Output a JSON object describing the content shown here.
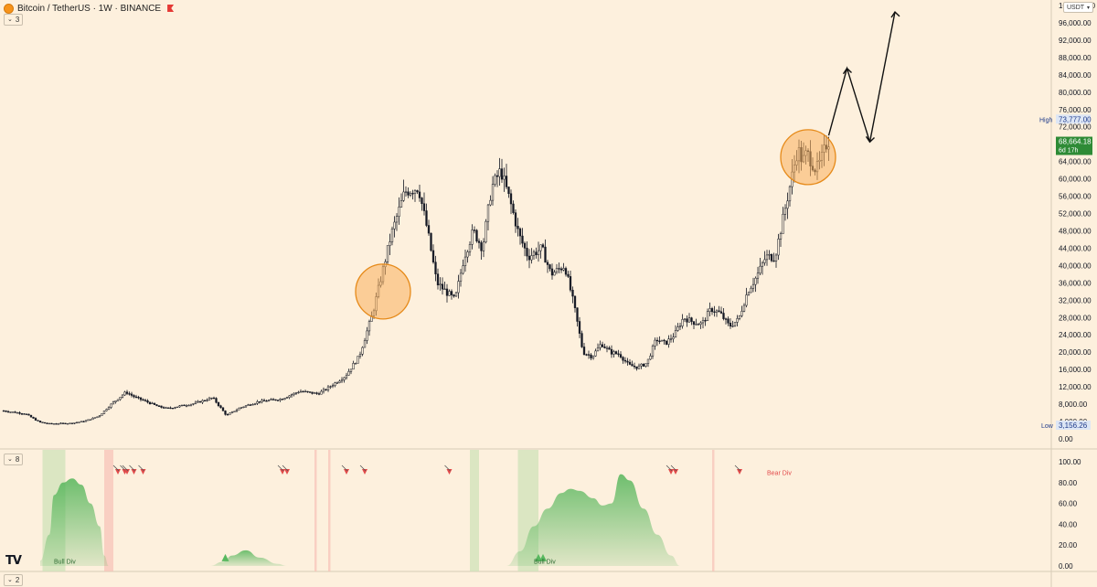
{
  "header": {
    "title": "Bitcoin / TetherUS · 1W · BINANCE",
    "main_pane_toggle": "3",
    "indicator_pane_toggle": "8",
    "bottom_pane_toggle": "2",
    "currency": "USDT"
  },
  "colors": {
    "background": "#fdf0dd",
    "candle_up": "#131722",
    "candle_down": "#131722",
    "highlight_circle_fill": "#f9b15c",
    "highlight_circle_stroke": "#e68a19",
    "high_label": "#1e3a8a",
    "price_badge": "#2e8b36",
    "bull_zone": "#cfe3b8",
    "bear_zone": "#f7c1b7",
    "oscillator": "#3fae49",
    "bear_marker": "#e24a4a"
  },
  "chart_data": [
    {
      "type": "candlestick",
      "title": "Bitcoin / TetherUS · 1W · BINANCE",
      "yscale": "linear",
      "ylim": [
        0,
        100000
      ],
      "y_ticks": [
        "100,000.00",
        "96,000.00",
        "92,000.00",
        "88,000.00",
        "84,000.00",
        "80,000.00",
        "76,000.00",
        "72,000.00",
        "68,000.00",
        "64,000.00",
        "60,000.00",
        "56,000.00",
        "52,000.00",
        "48,000.00",
        "44,000.00",
        "40,000.00",
        "36,000.00",
        "32,000.00",
        "28,000.00",
        "24,000.00",
        "20,000.00",
        "16,000.00",
        "12,000.00",
        "8,000.00",
        "4,000.00",
        "0.00"
      ],
      "high": {
        "label": "High",
        "value": "73,777.00"
      },
      "low": {
        "label": "Low",
        "value": "3,156.26"
      },
      "last_price": {
        "value": "68,664.18",
        "countdown": "6d 17h"
      },
      "anchors": [
        [
          0,
          6500
        ],
        [
          10,
          5800
        ],
        [
          16,
          3900
        ],
        [
          20,
          3500
        ],
        [
          30,
          3600
        ],
        [
          36,
          4100
        ],
        [
          42,
          5200
        ],
        [
          48,
          8200
        ],
        [
          54,
          10800
        ],
        [
          58,
          9600
        ],
        [
          62,
          8800
        ],
        [
          68,
          7500
        ],
        [
          72,
          7000
        ],
        [
          78,
          7600
        ],
        [
          84,
          8200
        ],
        [
          92,
          9500
        ],
        [
          98,
          5400
        ],
        [
          104,
          7200
        ],
        [
          112,
          8600
        ],
        [
          122,
          9200
        ],
        [
          130,
          11000
        ],
        [
          138,
          10400
        ],
        [
          142,
          11600
        ],
        [
          150,
          14500
        ],
        [
          156,
          19000
        ],
        [
          162,
          29000
        ],
        [
          166,
          38000
        ],
        [
          170,
          47000
        ],
        [
          176,
          57000
        ],
        [
          182,
          58000
        ],
        [
          186,
          48000
        ],
        [
          190,
          36000
        ],
        [
          194,
          34000
        ],
        [
          198,
          32000
        ],
        [
          202,
          42000
        ],
        [
          206,
          48000
        ],
        [
          210,
          44000
        ],
        [
          214,
          58000
        ],
        [
          218,
          62000
        ],
        [
          222,
          55000
        ],
        [
          226,
          47000
        ],
        [
          230,
          42000
        ],
        [
          236,
          44000
        ],
        [
          240,
          38000
        ],
        [
          246,
          40000
        ],
        [
          250,
          31000
        ],
        [
          254,
          20000
        ],
        [
          258,
          19000
        ],
        [
          262,
          22000
        ],
        [
          266,
          20000
        ],
        [
          270,
          19500
        ],
        [
          274,
          17000
        ],
        [
          278,
          16500
        ],
        [
          282,
          17500
        ],
        [
          286,
          23000
        ],
        [
          290,
          22000
        ],
        [
          294,
          24000
        ],
        [
          298,
          28000
        ],
        [
          302,
          27000
        ],
        [
          306,
          26500
        ],
        [
          310,
          30000
        ],
        [
          314,
          29000
        ],
        [
          318,
          26000
        ],
        [
          322,
          27500
        ],
        [
          326,
          34000
        ],
        [
          330,
          37500
        ],
        [
          334,
          42000
        ],
        [
          338,
          42000
        ],
        [
          342,
          52000
        ],
        [
          346,
          62000
        ],
        [
          348,
          67000
        ],
        [
          350,
          64000
        ],
        [
          352,
          66000
        ],
        [
          356,
          62000
        ],
        [
          358,
          64000
        ],
        [
          361,
          68700
        ]
      ],
      "total_bars": 362,
      "highlight_circles": [
        {
          "center_bar": 166,
          "center_value": 34000,
          "label": ""
        },
        {
          "center_bar": 352,
          "center_value": 65000,
          "label": ""
        }
      ],
      "projection_arrow": [
        [
          361,
          70000
        ],
        [
          369,
          85500
        ],
        [
          379,
          68500
        ],
        [
          390,
          98500
        ]
      ]
    },
    {
      "type": "area",
      "title": "",
      "ylim": [
        0,
        100
      ],
      "y_ticks": [
        "100.00",
        "80.00",
        "60.00",
        "40.00",
        "20.00",
        "0.00"
      ],
      "series": [
        {
          "points": [
            [
              16,
              5
            ],
            [
              20,
              30
            ],
            [
              22,
              68
            ],
            [
              26,
              80
            ],
            [
              30,
              84
            ],
            [
              34,
              78
            ],
            [
              38,
              60
            ],
            [
              42,
              38
            ],
            [
              44,
              10
            ],
            [
              46,
              0
            ]
          ]
        },
        {
          "points": [
            [
              90,
              0
            ],
            [
              96,
              4
            ],
            [
              100,
              10
            ],
            [
              106,
              15
            ],
            [
              112,
              8
            ],
            [
              120,
              2
            ],
            [
              124,
              0
            ]
          ]
        },
        {
          "points": [
            [
              220,
              0
            ],
            [
              226,
              14
            ],
            [
              232,
              38
            ],
            [
              238,
              55
            ],
            [
              244,
              70
            ],
            [
              248,
              74
            ],
            [
              252,
              72
            ],
            [
              258,
              65
            ],
            [
              262,
              58
            ],
            [
              266,
              60
            ],
            [
              270,
              88
            ],
            [
              274,
              82
            ],
            [
              280,
              55
            ],
            [
              286,
              30
            ],
            [
              292,
              10
            ],
            [
              296,
              0
            ]
          ]
        }
      ],
      "bull_zones": [
        [
          17,
          27
        ],
        [
          204,
          208
        ],
        [
          225,
          234
        ]
      ],
      "bear_zones": [
        [
          44,
          48
        ],
        [
          136,
          137
        ],
        [
          142,
          143
        ],
        [
          310,
          311
        ]
      ],
      "bear_markers_bars": [
        50,
        53,
        54,
        57,
        61,
        122,
        124,
        150,
        158,
        195,
        292,
        294,
        322
      ],
      "bull_markers_bars": [
        97,
        234,
        236
      ],
      "annotations": [
        {
          "bar": 22,
          "value": 5,
          "text": "Bull Div"
        },
        {
          "bar": 232,
          "value": 5,
          "text": "Bull Div"
        },
        {
          "bar": 334,
          "value": 90,
          "text": "Bear Div"
        }
      ]
    }
  ]
}
